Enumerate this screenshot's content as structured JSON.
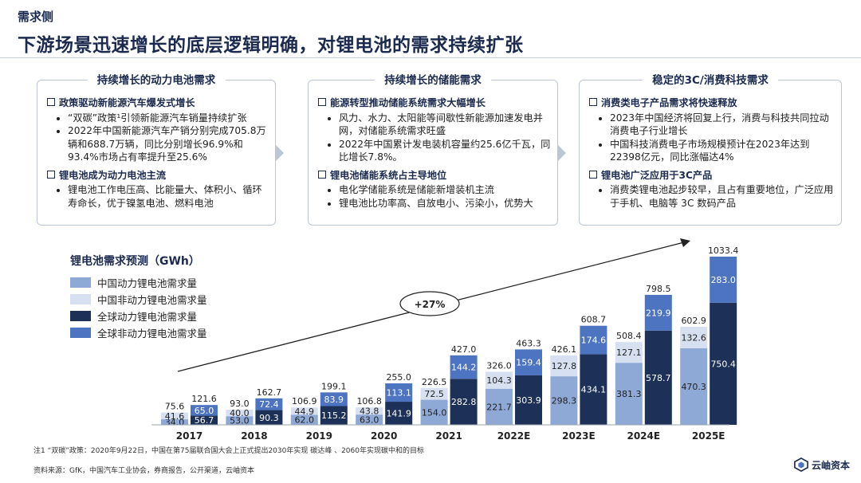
{
  "header": {
    "section": "需求侧",
    "headline": "下游场景迅速增长的底层逻辑明确，对锂电池的需求持续扩张"
  },
  "panels": [
    {
      "title": "持续增长的动力电池需求",
      "sections": [
        {
          "heading": "政策驱动新能源汽车爆发式增长",
          "bullets": [
            "“双碳”政策¹引领新能源汽车销量持续扩张",
            "2022年中国新能源汽车产销分别完成705.8万辆和688.7万辆，同比分别增长96.9%和93.4%市场占有率提升至25.6%"
          ]
        },
        {
          "heading": "锂电池成为动力电池主流",
          "bullets": [
            "锂电池工作电压高、比能量大、体积小、循环寿命长，优于镍氢电池、燃料电池"
          ]
        }
      ]
    },
    {
      "title": "持续增长的储能需求",
      "sections": [
        {
          "heading": "能源转型推动储能系统需求大幅增长",
          "bullets": [
            "风力、水力、太阳能等间歇性新能源加速发电并网，对储能系统需求旺盛",
            "2022年中国累计发电装机容量约25.6亿千瓦，同比增长7.8%。"
          ]
        },
        {
          "heading": "锂电池储能系统占主导地位",
          "bullets": [
            "电化学储能系统是储能新增装机主流",
            "锂电池比功率高、自放电小、污染小，优势大"
          ]
        }
      ]
    },
    {
      "title": "稳定的3C/消费科技需求",
      "sections": [
        {
          "heading": "消费类电子产品需求将快速释放",
          "bullets": [
            "2023年中国经济将回复上行，消费与科技共同拉动消费电子行业增长",
            "中国科技消费电子市场规模预计在2023年达到22398亿元，同比涨幅达4%"
          ]
        },
        {
          "heading": "锂电池广泛应用于3C产品",
          "bullets": [
            "消费类锂电池起步较早，且占有重要地位，广泛应用于手机、电脑等 3C 数码产品"
          ]
        }
      ]
    }
  ],
  "chart_data": {
    "type": "bar",
    "title": "锂电池需求预测（GWh）",
    "legend_position": "top-left",
    "categories": [
      "2017",
      "2018",
      "2019",
      "2020",
      "2021",
      "2022E",
      "2023E",
      "2024E",
      "2025E"
    ],
    "groups": [
      {
        "name": "中国",
        "series": [
          "中国动力锂电池需求量",
          "中国非动力锂电池需求量"
        ]
      },
      {
        "name": "全球",
        "series": [
          "全球动力锂电池需求量",
          "全球非动力锂电池需求量"
        ]
      }
    ],
    "series": [
      {
        "name": "中国动力锂电池需求量",
        "color": "#8fa9d6",
        "values": [
          34.0,
          53.0,
          62.0,
          63.0,
          null,
          221.7,
          298.3,
          381.3,
          470.3
        ]
      },
      {
        "name": "中国非动力锂电池需求量",
        "color": "#d6e0f0",
        "values": [
          41.6,
          40.0,
          44.9,
          43.8,
          72.5,
          104.3,
          127.8,
          127.1,
          132.6
        ]
      },
      {
        "name": "全球动力锂电池需求量",
        "color": "#1c3058",
        "values": [
          56.7,
          90.3,
          115.2,
          141.9,
          282.8,
          303.9,
          434.1,
          578.7,
          750.4
        ]
      },
      {
        "name": "全球非动力锂电池需求量",
        "color": "#4c74c0",
        "values": [
          65.0,
          72.4,
          83.9,
          113.1,
          144.2,
          159.4,
          174.6,
          219.9,
          283.0
        ]
      }
    ],
    "china_totals": [
      75.6,
      93.0,
      106.9,
      106.8,
      226.5,
      326.0,
      426.1,
      508.4,
      602.9
    ],
    "global_totals": [
      121.6,
      162.7,
      199.1,
      255.0,
      427.0,
      463.3,
      608.7,
      798.5,
      1033.4
    ],
    "extra_labels": {
      "2021": {
        "china_bottom_label": "154.0"
      }
    },
    "annotation": "+27%",
    "ylim": [
      0,
      1100
    ]
  },
  "footnote": "注1 “双碳”政策：2020年9月22日，中国在第75届联合国大会上正式提出2030年实现 碳达峰 、2060年实现碳中和的目标",
  "source": "资料来源：GfK，中国汽车工业协会，券商报告，公开渠道，云岫资本",
  "logo": {
    "text": "云岫资本"
  }
}
